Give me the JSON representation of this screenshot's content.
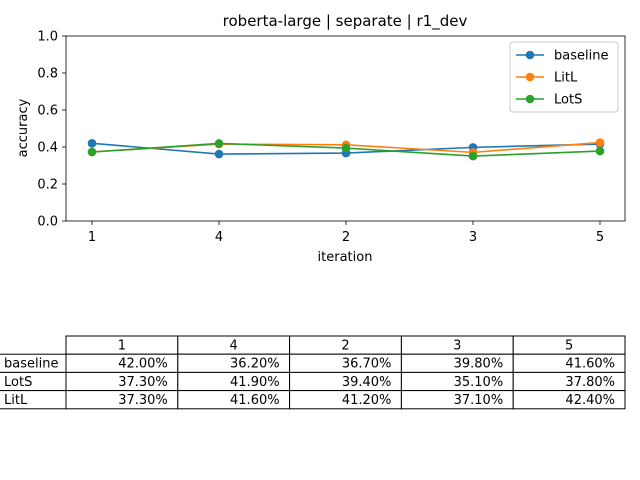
{
  "chart_data": {
    "type": "line",
    "title": "roberta-large | separate | r1_dev",
    "xlabel": "iteration",
    "ylabel": "accuracy",
    "categories": [
      "1",
      "4",
      "2",
      "3",
      "5"
    ],
    "ylim": [
      0.0,
      1.0
    ],
    "yticks": [
      "0.0",
      "0.2",
      "0.4",
      "0.6",
      "0.8",
      "1.0"
    ],
    "grid": false,
    "legend_position": "top-right",
    "series": [
      {
        "name": "baseline",
        "color": "#1f77b4",
        "values": [
          0.42,
          0.362,
          0.367,
          0.398,
          0.416
        ]
      },
      {
        "name": "LitL",
        "color": "#ff7f0e",
        "values": [
          0.373,
          0.416,
          0.412,
          0.371,
          0.424
        ]
      },
      {
        "name": "LotS",
        "color": "#2ca02c",
        "values": [
          0.373,
          0.419,
          0.394,
          0.351,
          0.378
        ]
      }
    ]
  },
  "table": {
    "columns": [
      "1",
      "4",
      "2",
      "3",
      "5"
    ],
    "rows": [
      {
        "label": "baseline",
        "cells": [
          "42.00%",
          "36.20%",
          "36.70%",
          "39.80%",
          "41.60%"
        ]
      },
      {
        "label": "LotS",
        "cells": [
          "37.30%",
          "41.90%",
          "39.40%",
          "35.10%",
          "37.80%"
        ]
      },
      {
        "label": "LitL",
        "cells": [
          "37.30%",
          "41.60%",
          "41.20%",
          "37.10%",
          "42.40%"
        ]
      }
    ]
  }
}
